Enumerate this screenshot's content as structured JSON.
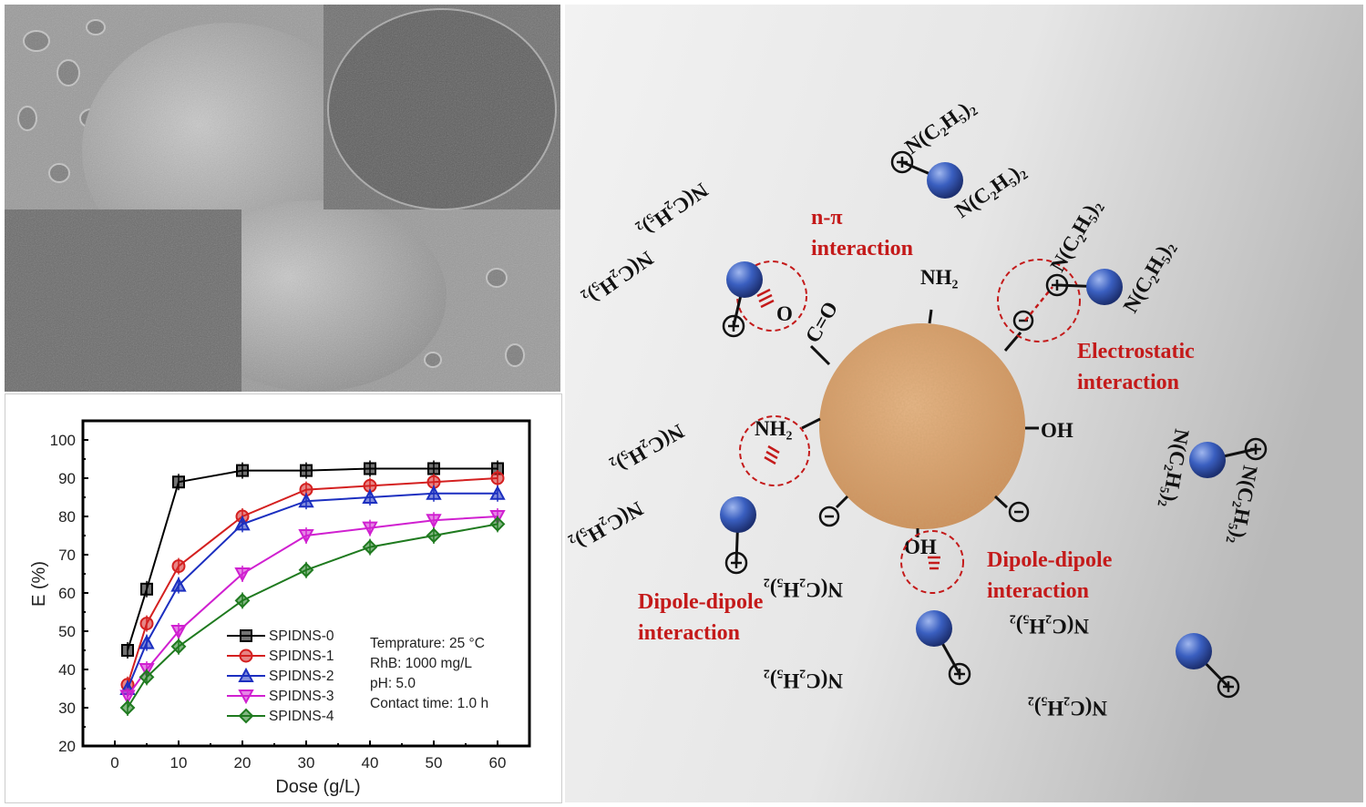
{
  "sem_image": {
    "description_visible": false
  },
  "chart_data": {
    "type": "line",
    "xlabel": "Dose (g/L)",
    "ylabel": "E (%)",
    "xlim": [
      -5,
      65
    ],
    "ylim": [
      20,
      105
    ],
    "xticks": [
      0,
      10,
      20,
      30,
      40,
      50,
      60
    ],
    "yticks": [
      20,
      30,
      40,
      50,
      60,
      70,
      80,
      90,
      100
    ],
    "grid": false,
    "legend_position": "bottom-center",
    "x": [
      2,
      5,
      10,
      20,
      30,
      40,
      50,
      60
    ],
    "series": [
      {
        "name": "SPIDNS-0",
        "color": "#000000",
        "marker": "square",
        "values": [
          45,
          61,
          89,
          92,
          92,
          92.5,
          92.5,
          92.5
        ]
      },
      {
        "name": "SPIDNS-1",
        "color": "#d42020",
        "marker": "circle",
        "values": [
          36,
          52,
          67,
          80,
          87,
          88,
          89,
          90
        ]
      },
      {
        "name": "SPIDNS-2",
        "color": "#1c2fc0",
        "marker": "triangle-up",
        "values": [
          35,
          47,
          62,
          78,
          84,
          85,
          86,
          86
        ]
      },
      {
        "name": "SPIDNS-3",
        "color": "#d020d0",
        "marker": "triangle-down",
        "values": [
          33,
          40,
          50,
          65,
          75,
          77,
          79,
          80
        ]
      },
      {
        "name": "SPIDNS-4",
        "color": "#1f7a1f",
        "marker": "diamond",
        "values": [
          30,
          38,
          46,
          58,
          66,
          72,
          75,
          78
        ]
      }
    ],
    "annotations": [
      "Temprature: 25 °C",
      "RhB: 1000 mg/L",
      "pH: 5.0",
      "Contact time: 1.0 h"
    ]
  },
  "diagram": {
    "labels": {
      "n_pi": [
        "n-π",
        "interaction"
      ],
      "electrostatic": [
        "Electrostatic",
        "interaction"
      ],
      "dipole_left": [
        "Dipole-dipole",
        "interaction"
      ],
      "dipole_right": [
        "Dipole-dipole",
        "interaction"
      ]
    },
    "groups": {
      "nh2_top": "NH₂",
      "nh2_left": "NH₂",
      "oh_right": "OH",
      "oh_bottom": "OH",
      "carbonyl": "C=O",
      "o_single": "O"
    },
    "dye_group": "N(C₂H₅)₂",
    "plus_sign": "+",
    "minus_sign": "-",
    "colors": {
      "particle": "#d9a070",
      "dye_ball": "#3a5fc0",
      "interaction": "#c41a1a"
    }
  }
}
